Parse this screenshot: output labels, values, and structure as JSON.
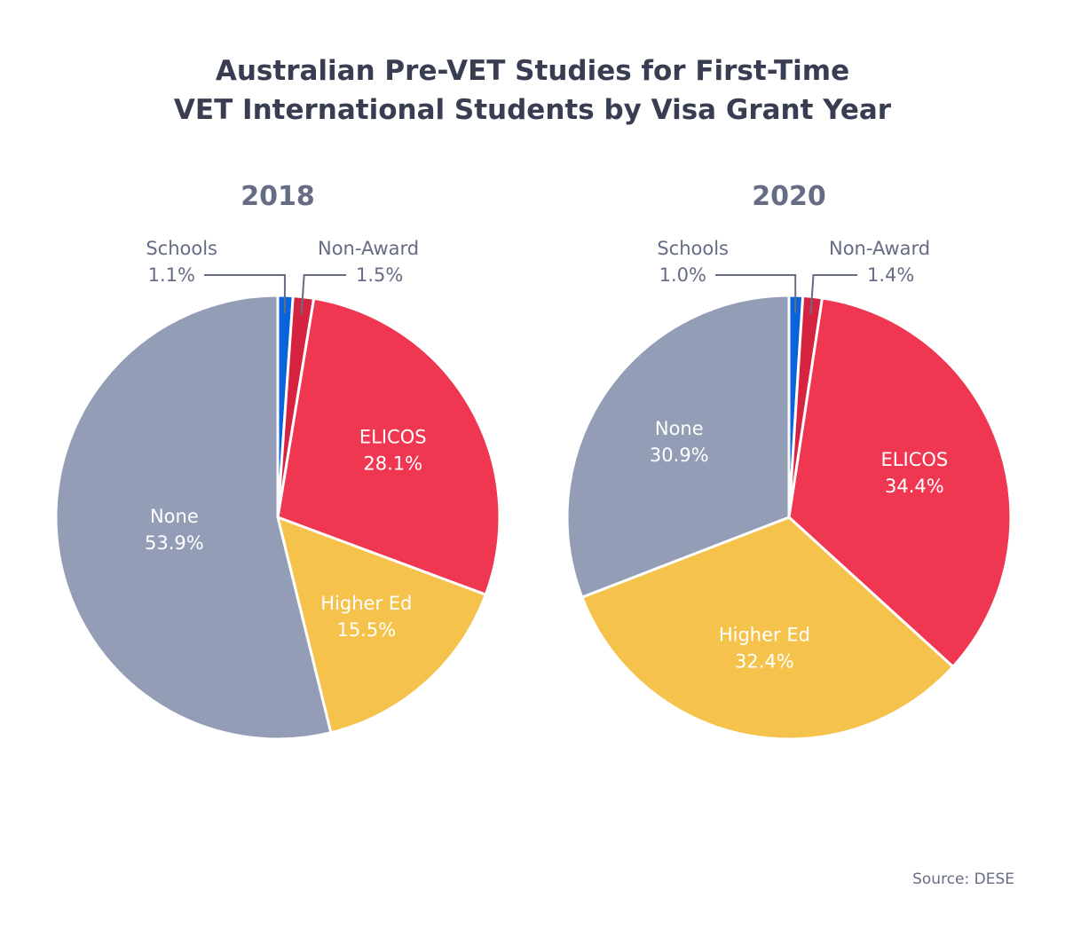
{
  "chart_data": [
    {
      "type": "pie",
      "title": "2018",
      "categories": [
        "Schools",
        "Non-Award",
        "ELICOS",
        "Higher Ed",
        "None"
      ],
      "values": [
        1.1,
        1.5,
        28.1,
        15.5,
        53.9
      ],
      "labels": [
        "1.1%",
        "1.5%",
        "28.1%",
        "15.5%",
        "53.9%"
      ],
      "start": "12 o'clock, clockwise"
    },
    {
      "type": "pie",
      "title": "2020",
      "categories": [
        "Schools",
        "Non-Award",
        "ELICOS",
        "Higher Ed",
        "None"
      ],
      "values": [
        1.0,
        1.4,
        34.4,
        32.4,
        30.9
      ],
      "labels": [
        "1.0%",
        "1.4%",
        "34.4%",
        "32.4%",
        "30.9%"
      ],
      "start": "12 o'clock, clockwise"
    }
  ],
  "title_line1": "Australian Pre-VET Studies for First-Time",
  "title_line2": "VET International Students by Visa Grant Year",
  "source": "Source: DESE",
  "colors": {
    "Schools": "#0a62dc",
    "Non-Award": "#d6233f",
    "ELICOS": "#f03752",
    "Higher Ed": "#f5c24c",
    "None": "#949db6"
  }
}
